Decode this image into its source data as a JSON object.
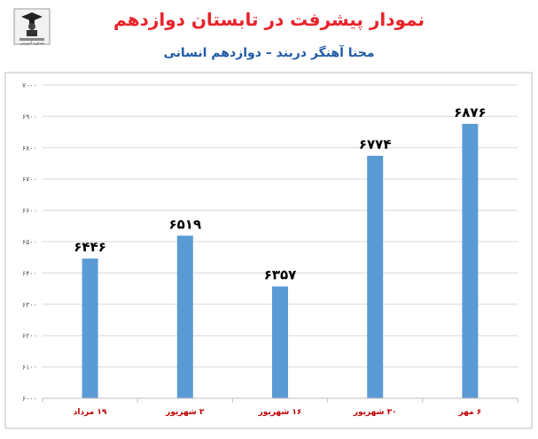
{
  "title": "نمودار پیشرفت در تابستان دوازدهم",
  "subtitle": "محنا آهنگر دربند – دوازدهم انسانی",
  "logo": {
    "icon": "graduate-logo-icon",
    "text": "مشاوره آموزشی"
  },
  "colors": {
    "title": "#e8232a",
    "subtitle": "#1f5aa6",
    "bar": "#5b9bd5",
    "category": "#c00000",
    "value": "#000000"
  },
  "chart_data": {
    "type": "bar",
    "title": "نمودار پیشرفت در تابستان دوازدهم",
    "subtitle": "محنا آهنگر دربند – دوازدهم انسانی",
    "categories": [
      "۱۹ مرداد",
      "۲ شهریور",
      "۱۶ شهریور",
      "۳۰ شهریور",
      "۶ مهر"
    ],
    "values": [
      6446,
      6519,
      6357,
      6774,
      6876
    ],
    "value_labels": [
      "۶۴۴۶",
      "۶۵۱۹",
      "۶۳۵۷",
      "۶۷۷۴",
      "۶۸۷۶"
    ],
    "ylim": [
      6000,
      7000
    ],
    "yticks": [
      6000,
      6100,
      6200,
      6300,
      6400,
      6500,
      6600,
      6700,
      6800,
      6900,
      7000
    ],
    "ytick_labels": [
      "۶۰۰۰",
      "۶۱۰۰",
      "۶۲۰۰",
      "۶۳۰۰",
      "۶۴۰۰",
      "۶۵۰۰",
      "۶۶۰۰",
      "۶۷۰۰",
      "۶۸۰۰",
      "۶۹۰۰",
      "۷۰۰۰"
    ],
    "xlabel": "",
    "ylabel": "",
    "grid": true,
    "legend": "none"
  }
}
